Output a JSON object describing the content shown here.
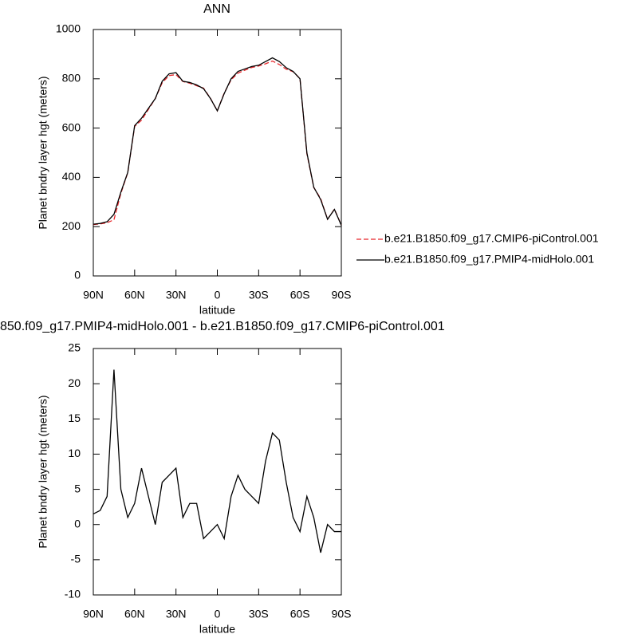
{
  "chart_data": [
    {
      "type": "line",
      "title": "ANN",
      "x": [
        90,
        85,
        80,
        75,
        70,
        65,
        60,
        55,
        50,
        45,
        40,
        35,
        30,
        25,
        20,
        15,
        10,
        5,
        0,
        -5,
        -10,
        -15,
        -20,
        -25,
        -30,
        -35,
        -40,
        -45,
        -50,
        -55,
        -60,
        -65,
        -70,
        -75,
        -80,
        -85,
        -90
      ],
      "series": [
        {
          "name": "b.e21.B1850.f09_g17.CMIP6-piControl.001",
          "color": "#e8262a",
          "dash": true,
          "values": [
            208.5,
            211,
            216,
            228,
            335,
            419,
            607,
            632,
            676,
            720,
            784,
            813,
            817,
            789,
            782,
            772,
            762,
            721,
            670,
            742,
            796,
            823,
            835,
            846,
            852,
            861,
            872,
            858,
            839,
            829,
            801,
            496,
            359,
            314,
            230,
            271,
            206
          ]
        },
        {
          "name": "b.e21.B1850.f09_g17.PMIP4-midHolo.001",
          "color": "#000000",
          "dash": false,
          "values": [
            210,
            213,
            220,
            250,
            340,
            420,
            610,
            640,
            680,
            720,
            790,
            820,
            825,
            790,
            785,
            775,
            760,
            720,
            670,
            740,
            800,
            830,
            840,
            850,
            855,
            870,
            885,
            870,
            845,
            830,
            800,
            500,
            360,
            310,
            230,
            270,
            205
          ]
        }
      ],
      "xlim": [
        90,
        -90
      ],
      "xticks": [
        {
          "value": 90,
          "label": "90N"
        },
        {
          "value": 60,
          "label": "60N"
        },
        {
          "value": 30,
          "label": "30N"
        },
        0,
        {
          "value": -30,
          "label": "30S"
        },
        {
          "value": -60,
          "label": "60S"
        },
        {
          "value": -90,
          "label": "90S"
        }
      ],
      "ylim": [
        0,
        1000
      ],
      "yticks": [
        0,
        200,
        400,
        600,
        800,
        1000
      ],
      "xlabel": "latitude",
      "ylabel": "Planet bndry layer hgt (meters)",
      "legend": "right"
    },
    {
      "type": "line",
      "title": "850.f09_g17.PMIP4-midHolo.001 - b.e21.B1850.f09_g17.CMIP6-piControl.001",
      "x": [
        90,
        85,
        80,
        75,
        70,
        65,
        60,
        55,
        50,
        45,
        40,
        35,
        30,
        25,
        20,
        15,
        10,
        5,
        0,
        -5,
        -10,
        -15,
        -20,
        -25,
        -30,
        -35,
        -40,
        -45,
        -50,
        -55,
        -60,
        -65,
        -70,
        -75,
        -80,
        -85,
        -90
      ],
      "series": [
        {
          "color": "#000000",
          "dash": false,
          "values": [
            1.5,
            2,
            4,
            22,
            5,
            1,
            3,
            8,
            4,
            0,
            6,
            7,
            8,
            1,
            3,
            3,
            -2,
            -1,
            0,
            -2,
            4,
            7,
            5,
            4,
            3,
            9,
            13,
            12,
            6,
            1,
            -1,
            4,
            1,
            -4,
            0,
            -1,
            -1
          ]
        }
      ],
      "xlim": [
        90,
        -90
      ],
      "xticks": [
        {
          "value": 90,
          "label": "90N"
        },
        {
          "value": 60,
          "label": "60N"
        },
        {
          "value": 30,
          "label": "30N"
        },
        0,
        {
          "value": -30,
          "label": "30S"
        },
        {
          "value": -60,
          "label": "60S"
        },
        {
          "value": -90,
          "label": "90S"
        }
      ],
      "ylim": [
        -10,
        25
      ],
      "yticks": [
        -10,
        -5,
        0,
        5,
        10,
        15,
        20,
        25
      ],
      "xlabel": "latitude",
      "ylabel": "Planet bndry layer hgt (meters)"
    }
  ]
}
